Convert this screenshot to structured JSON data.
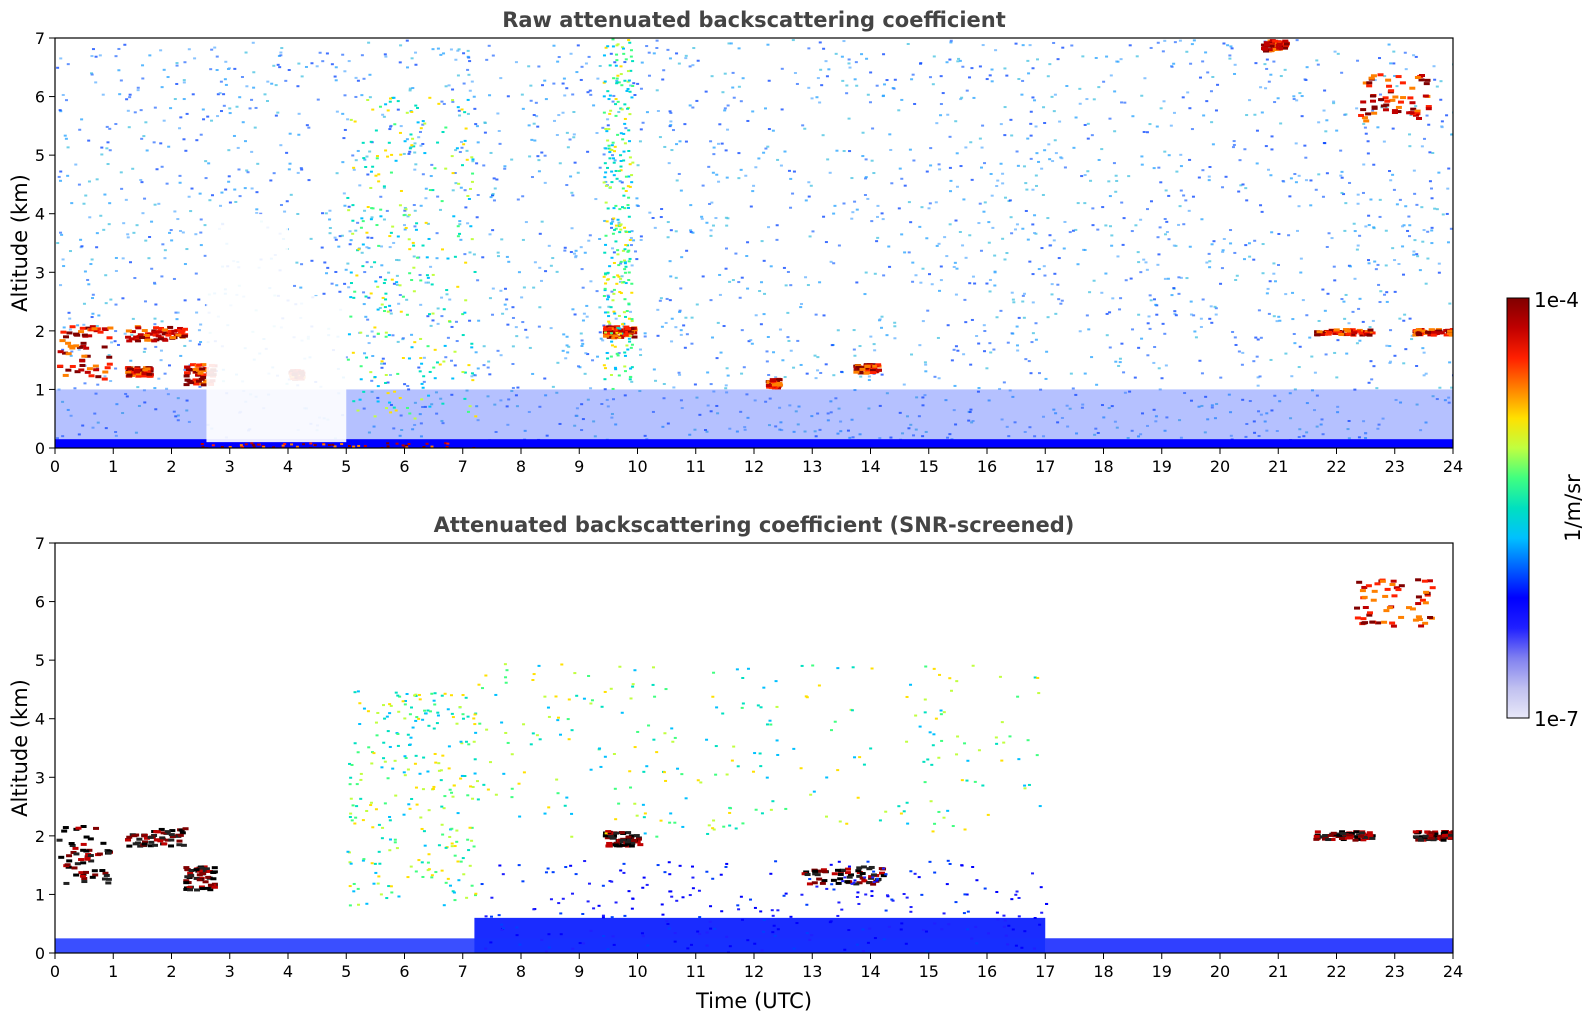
{
  "chart_data": [
    {
      "type": "heatmap",
      "title": "Raw attenuated backscattering coefficient",
      "xlabel": "",
      "ylabel": "Altitude (km)",
      "xlim": [
        0,
        24
      ],
      "ylim": [
        0,
        7
      ],
      "xticks": [
        "0",
        "1",
        "2",
        "3",
        "4",
        "5",
        "6",
        "7",
        "8",
        "9",
        "10",
        "11",
        "12",
        "13",
        "14",
        "15",
        "16",
        "17",
        "18",
        "19",
        "20",
        "21",
        "22",
        "23",
        "24"
      ],
      "yticks": [
        "0",
        "1",
        "2",
        "3",
        "4",
        "5",
        "6",
        "7"
      ],
      "features": [
        {
          "kind": "cloud",
          "t": [
            0.0,
            0.9
          ],
          "alt": [
            1.2,
            2.1
          ],
          "value": "1e-4"
        },
        {
          "kind": "cloud",
          "t": [
            1.2,
            2.2
          ],
          "alt": [
            1.85,
            2.1
          ],
          "value": "1e-4"
        },
        {
          "kind": "cloud",
          "t": [
            1.2,
            1.6
          ],
          "alt": [
            1.25,
            1.4
          ],
          "value": "1e-4"
        },
        {
          "kind": "cloud",
          "t": [
            2.2,
            2.7
          ],
          "alt": [
            1.1,
            1.45
          ],
          "value": "1e-4"
        },
        {
          "kind": "cloud",
          "t": [
            4.0,
            4.2
          ],
          "alt": [
            1.2,
            1.35
          ],
          "value": "1e-4"
        },
        {
          "kind": "cloud",
          "t": [
            9.4,
            9.9
          ],
          "alt": [
            1.9,
            2.1
          ],
          "value": "1e-4"
        },
        {
          "kind": "cloud",
          "t": [
            12.2,
            12.4
          ],
          "alt": [
            1.05,
            1.2
          ],
          "value": "1e-4"
        },
        {
          "kind": "cloud",
          "t": [
            13.7,
            14.1
          ],
          "alt": [
            1.3,
            1.45
          ],
          "value": "1e-4"
        },
        {
          "kind": "cloud",
          "t": [
            21.6,
            22.6
          ],
          "alt": [
            1.95,
            2.05
          ],
          "value": "1e-4"
        },
        {
          "kind": "cloud",
          "t": [
            23.3,
            24.0
          ],
          "alt": [
            1.95,
            2.05
          ],
          "value": "1e-4"
        },
        {
          "kind": "cloud",
          "t": [
            22.3,
            23.6
          ],
          "alt": [
            5.6,
            6.4
          ],
          "value": "1e-4"
        },
        {
          "kind": "cloud",
          "t": [
            20.7,
            21.1
          ],
          "alt": [
            6.8,
            7.0
          ],
          "value": "1e-4"
        },
        {
          "kind": "surface_layer",
          "t": [
            2.5,
            7.2
          ],
          "alt": [
            0.0,
            0.1
          ],
          "value": "1e-4"
        },
        {
          "kind": "aerosol",
          "t": [
            5.0,
            7.2
          ],
          "alt": [
            0.5,
            6.0
          ],
          "value": "mid"
        },
        {
          "kind": "aerosol",
          "t": [
            9.4,
            9.9
          ],
          "alt": [
            1.0,
            7.0
          ],
          "value": "mid"
        },
        {
          "kind": "noise_gap",
          "t": [
            2.6,
            4.0
          ],
          "alt": [
            0.1,
            4.0
          ],
          "value": "missing"
        },
        {
          "kind": "noise_gap",
          "t": [
            4.0,
            5.0
          ],
          "alt": [
            0.1,
            2.6
          ],
          "value": "missing"
        }
      ]
    },
    {
      "type": "heatmap",
      "title": "Attenuated backscattering coefficient (SNR-screened)",
      "xlabel": "Time (UTC)",
      "ylabel": "Altitude (km)",
      "xlim": [
        0,
        24
      ],
      "ylim": [
        0,
        7
      ],
      "xticks": [
        "0",
        "1",
        "2",
        "3",
        "4",
        "5",
        "6",
        "7",
        "8",
        "9",
        "10",
        "11",
        "12",
        "13",
        "14",
        "15",
        "16",
        "17",
        "18",
        "19",
        "20",
        "21",
        "22",
        "23",
        "24"
      ],
      "yticks": [
        "0",
        "1",
        "2",
        "3",
        "4",
        "5",
        "6",
        "7"
      ],
      "features": [
        {
          "kind": "cloud",
          "t": [
            0.0,
            0.9
          ],
          "alt": [
            1.2,
            2.2
          ],
          "value": "saturated"
        },
        {
          "kind": "cloud",
          "t": [
            1.2,
            2.2
          ],
          "alt": [
            1.85,
            2.15
          ],
          "value": "saturated"
        },
        {
          "kind": "cloud",
          "t": [
            2.2,
            2.7
          ],
          "alt": [
            1.1,
            1.5
          ],
          "value": "saturated"
        },
        {
          "kind": "cloud",
          "t": [
            9.4,
            10.0
          ],
          "alt": [
            1.85,
            2.1
          ],
          "value": "saturated"
        },
        {
          "kind": "cloud",
          "t": [
            12.8,
            14.2
          ],
          "alt": [
            1.2,
            1.5
          ],
          "value": "saturated"
        },
        {
          "kind": "cloud",
          "t": [
            21.6,
            22.6
          ],
          "alt": [
            1.95,
            2.1
          ],
          "value": "saturated"
        },
        {
          "kind": "cloud",
          "t": [
            23.3,
            24.0
          ],
          "alt": [
            1.95,
            2.1
          ],
          "value": "saturated"
        },
        {
          "kind": "cloud",
          "t": [
            22.3,
            23.6
          ],
          "alt": [
            5.6,
            6.4
          ],
          "value": "1e-4"
        },
        {
          "kind": "aerosol",
          "t": [
            5.0,
            7.2
          ],
          "alt": [
            0.8,
            4.5
          ],
          "value": "mid"
        },
        {
          "kind": "aerosol",
          "t": [
            7.2,
            17.0
          ],
          "alt": [
            2.0,
            5.0
          ],
          "value": "mid"
        },
        {
          "kind": "boundary_layer",
          "t": [
            7.2,
            17.0
          ],
          "alt": [
            0.0,
            1.6
          ],
          "value": "low"
        }
      ]
    }
  ],
  "colorbar": {
    "label": "1/m/sr",
    "max_label": "1e-4",
    "min_label": "1e-7",
    "scale": "log",
    "colormap": [
      "#e8e8f8",
      "#c0c0f0",
      "#8080f0",
      "#2020ff",
      "#0000ff",
      "#0060ff",
      "#00c0ff",
      "#00e0c0",
      "#40ff80",
      "#c0ff40",
      "#ffe000",
      "#ff8000",
      "#ff2000",
      "#c00000",
      "#800000"
    ]
  }
}
